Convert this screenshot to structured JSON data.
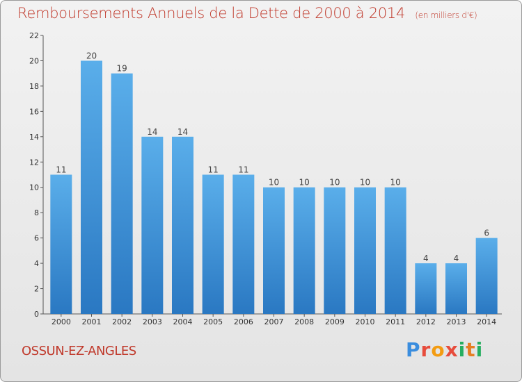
{
  "chart_data": {
    "type": "bar",
    "title": "Remboursements Annuels de la Dette de 2000 à 2014",
    "unit": "(en milliers d'€)",
    "categories": [
      "2000",
      "2001",
      "2002",
      "2003",
      "2004",
      "2005",
      "2006",
      "2007",
      "2008",
      "2009",
      "2010",
      "2011",
      "2012",
      "2013",
      "2014"
    ],
    "values": [
      11,
      20,
      19,
      14,
      14,
      11,
      11,
      10,
      10,
      10,
      10,
      10,
      4,
      4,
      6
    ],
    "ylim": [
      0,
      22
    ],
    "yticks": [
      0,
      2,
      4,
      6,
      8,
      10,
      12,
      14,
      16,
      18,
      20,
      22
    ],
    "grid": false,
    "bar_color": "#4a9fe0",
    "bar_color_dark": "#2a78c2"
  },
  "footer": {
    "commune": "OSSUN-EZ-ANGLES",
    "logo": "Proxiti"
  },
  "colors": {
    "title": "#c0392b"
  }
}
